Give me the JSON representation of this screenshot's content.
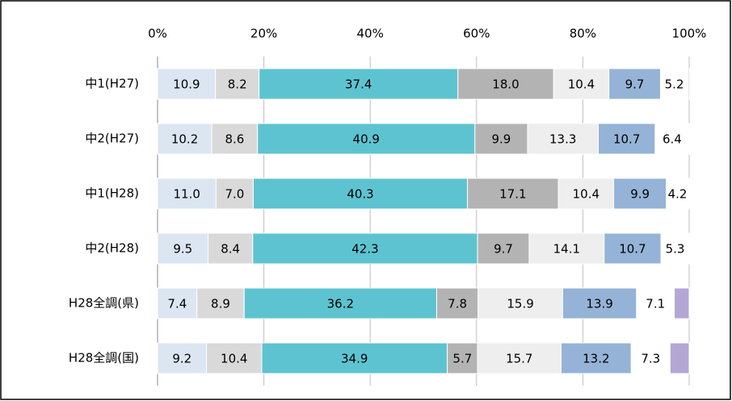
{
  "chart_data": {
    "type": "stacked_bar_horizontal",
    "categories": [
      "中1(H27)",
      "中2(H27)",
      "中1(H28)",
      "中2(H28)",
      "H28全調(県)",
      "H28全調(国)"
    ],
    "xlim": [
      0,
      100
    ],
    "xticks": [
      {
        "value": 0,
        "label": "0%"
      },
      {
        "value": 20,
        "label": "20%"
      },
      {
        "value": 40,
        "label": "40%"
      },
      {
        "value": 60,
        "label": "60%"
      },
      {
        "value": 80,
        "label": "80%"
      },
      {
        "value": 100,
        "label": "100%"
      }
    ],
    "grid": true,
    "series": [
      {
        "color": "#dce6f2",
        "values": [
          10.9,
          10.2,
          11.0,
          9.5,
          7.4,
          9.2
        ],
        "value_labels": [
          "10.9",
          "10.2",
          "11.0",
          "9.5",
          "7.4",
          "9.2"
        ]
      },
      {
        "color": "#d9d9d9",
        "values": [
          8.2,
          8.6,
          7.0,
          8.4,
          8.9,
          10.4
        ],
        "value_labels": [
          "8.2",
          "8.6",
          "7.0",
          "8.4",
          "8.9",
          "10.4"
        ]
      },
      {
        "color": "#5ec3d0",
        "values": [
          37.4,
          40.9,
          40.3,
          42.3,
          36.2,
          34.9
        ],
        "value_labels": [
          "37.4",
          "40.9",
          "40.3",
          "42.3",
          "36.2",
          "34.9"
        ]
      },
      {
        "color": "#b3b3b3",
        "values": [
          18.0,
          9.9,
          17.1,
          9.7,
          7.8,
          5.7
        ],
        "value_labels": [
          "18.0",
          "9.9",
          "17.1",
          "9.7",
          "7.8",
          "5.7"
        ]
      },
      {
        "color": "#eeeeee",
        "values": [
          10.4,
          13.3,
          10.4,
          14.1,
          15.9,
          15.7
        ],
        "value_labels": [
          "10.4",
          "13.3",
          "10.4",
          "14.1",
          "15.9",
          "15.7"
        ]
      },
      {
        "color": "#95b3d7",
        "values": [
          9.7,
          10.7,
          9.9,
          10.7,
          13.9,
          13.2
        ],
        "value_labels": [
          "9.7",
          "10.7",
          "9.9",
          "10.7",
          "13.9",
          "13.2"
        ]
      },
      {
        "color": "#ffffff",
        "values": [
          5.2,
          6.4,
          4.2,
          5.3,
          7.1,
          7.3
        ],
        "value_labels": [
          "5.2",
          "6.4",
          "4.2",
          "5.3",
          "7.1",
          "7.3"
        ]
      },
      {
        "color": "#b4a7d6",
        "values": [
          0.2,
          0.0,
          0.1,
          0.0,
          2.8,
          3.6
        ]
      }
    ]
  }
}
